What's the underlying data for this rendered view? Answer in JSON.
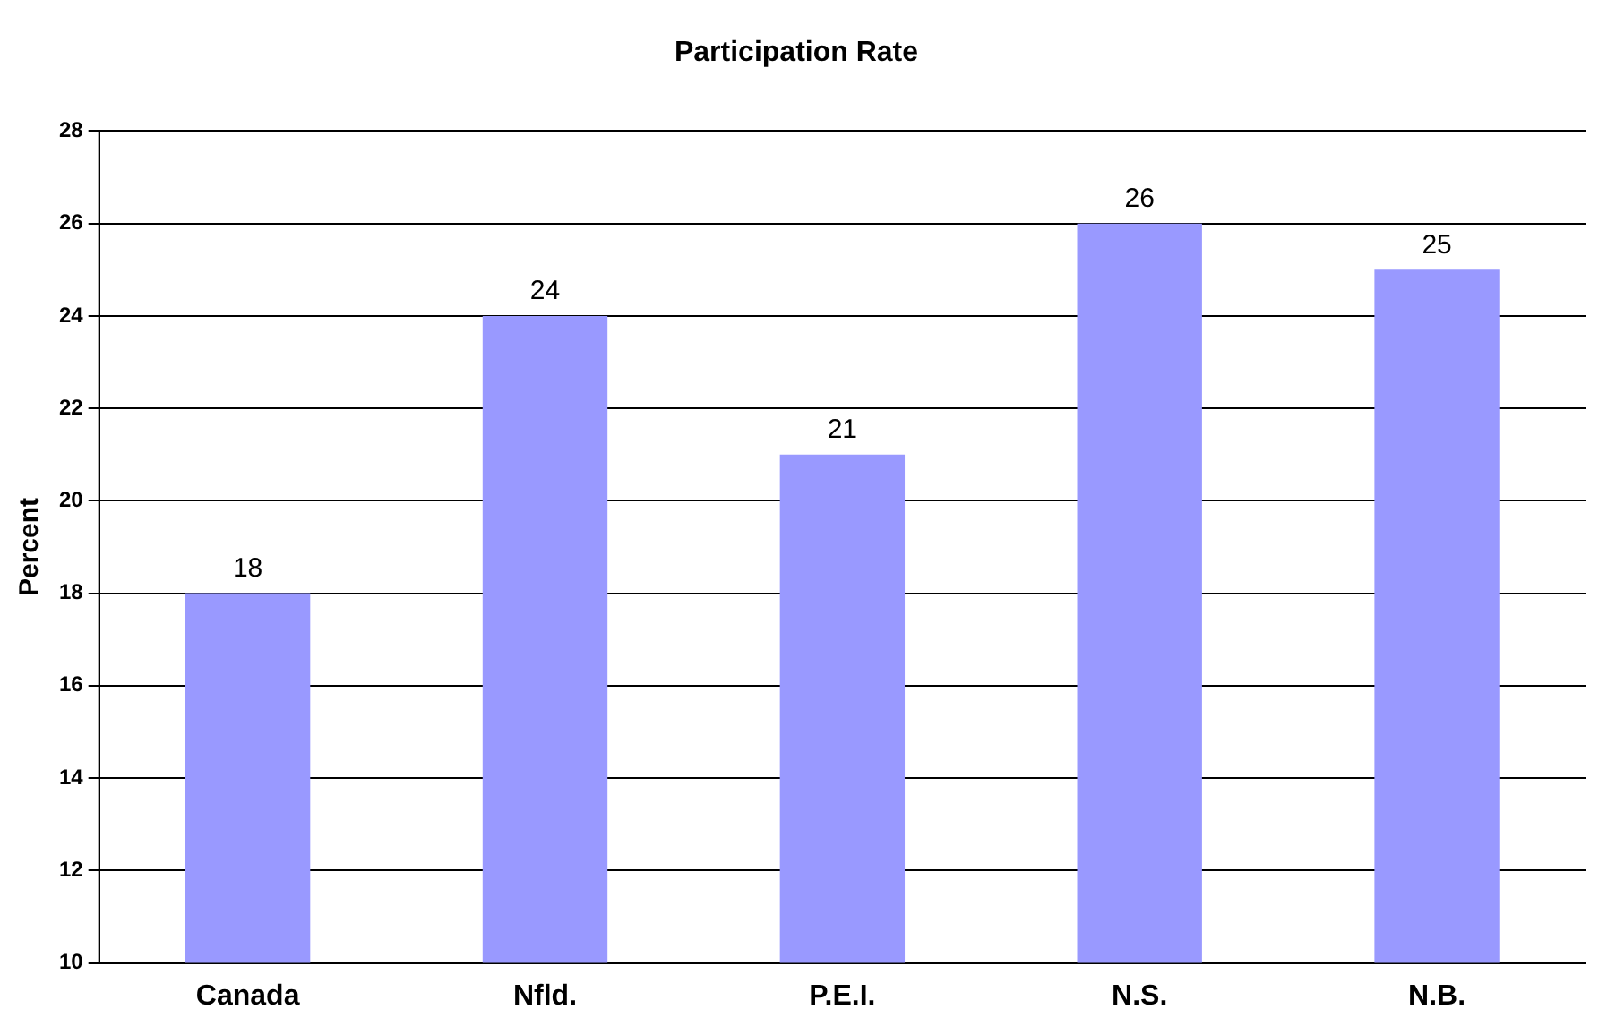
{
  "chart_data": {
    "type": "bar",
    "title": "Participation Rate",
    "ylabel": "Percent",
    "categories": [
      "Canada",
      "Nfld.",
      "P.E.I.",
      "N.S.",
      "N.B."
    ],
    "values": [
      18,
      24,
      21,
      26,
      25
    ],
    "color": "#9999ff",
    "ylim": [
      10,
      28
    ],
    "yticks": [
      10,
      12,
      14,
      16,
      18,
      20,
      22,
      24,
      26,
      28
    ],
    "grid": "y",
    "data_labels": true
  }
}
